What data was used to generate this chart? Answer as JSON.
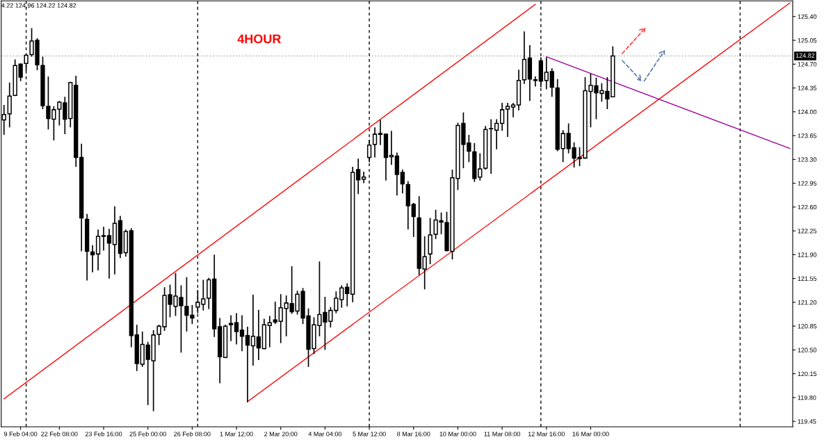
{
  "chart_data": {
    "type": "candlestick",
    "annotations": [
      "4.22 124.96 124.22 124.82",
      "4HOUR"
    ],
    "categories": [
      null,
      null,
      null,
      "9 Feb 04:00",
      null,
      null,
      null,
      null,
      null,
      null,
      "22 Feb 08:00",
      null,
      null,
      null,
      null,
      null,
      null,
      null,
      "23 Feb 16:00",
      null,
      null,
      null,
      null,
      null,
      null,
      null,
      "25 Feb 00:00",
      null,
      null,
      null,
      null,
      null,
      null,
      null,
      "26 Feb 08:00",
      null,
      null,
      null,
      null,
      null,
      null,
      null,
      "1 Mar 12:00",
      null,
      null,
      null,
      null,
      null,
      null,
      null,
      "2 Mar 20:00",
      null,
      null,
      null,
      null,
      null,
      null,
      null,
      "4 Mar 04:00",
      null,
      null,
      null,
      null,
      null,
      null,
      null,
      "5 Mar 12:00",
      null,
      null,
      null,
      null,
      null,
      null,
      null,
      "8 Mar 16:00",
      null,
      null,
      null,
      null,
      null,
      null,
      null,
      "10 Mar 00:00",
      null,
      null,
      null,
      null,
      null,
      null,
      null,
      "11 Mar 08:00",
      null,
      null,
      null,
      null,
      null,
      null,
      null,
      "12 Mar 16:00",
      null,
      null,
      null,
      null,
      null,
      null,
      null,
      "16 Mar 00:00",
      null,
      null,
      null,
      null,
      null,
      null,
      null,
      null,
      null,
      null,
      null,
      null,
      null,
      null,
      null,
      null,
      null,
      null,
      null,
      null,
      null,
      null,
      null,
      null,
      null,
      null,
      null,
      null,
      null,
      null,
      null,
      null,
      null,
      null,
      null,
      null
    ],
    "ohlc": [
      [
        123.88,
        124.1,
        123.66,
        123.96
      ],
      [
        123.97,
        124.43,
        123.77,
        124.23
      ],
      [
        124.24,
        124.77,
        124.23,
        124.68
      ],
      [
        124.7,
        124.71,
        124.45,
        124.51
      ],
      [
        124.71,
        124.85,
        124.6,
        124.83
      ],
      [
        124.84,
        125.23,
        124.81,
        125.04
      ],
      [
        125.05,
        125.08,
        124.61,
        124.69
      ],
      [
        124.68,
        124.81,
        124.04,
        124.09
      ],
      [
        124.08,
        124.52,
        123.74,
        123.9
      ],
      [
        123.89,
        124.08,
        123.58,
        124.03
      ],
      [
        124.04,
        124.16,
        123.8,
        124.14
      ],
      [
        124.13,
        124.22,
        123.67,
        123.89
      ],
      [
        123.9,
        124.44,
        123.77,
        124.43
      ],
      [
        124.39,
        124.53,
        123.19,
        123.33
      ],
      [
        123.33,
        123.53,
        121.95,
        122.44
      ],
      [
        122.42,
        122.5,
        121.52,
        121.95
      ],
      [
        121.94,
        122.04,
        121.64,
        121.9
      ],
      [
        121.91,
        122.27,
        121.67,
        122.17
      ],
      [
        122.18,
        122.31,
        121.96,
        122.17
      ],
      [
        122.18,
        122.28,
        121.55,
        122.07
      ],
      [
        122.05,
        122.61,
        121.61,
        122.36
      ],
      [
        122.4,
        122.47,
        121.85,
        121.92
      ],
      [
        121.93,
        122.27,
        121.87,
        122.24
      ],
      [
        122.25,
        122.29,
        120.54,
        120.71
      ],
      [
        120.72,
        120.87,
        120.19,
        120.3
      ],
      [
        120.29,
        120.77,
        120.25,
        120.58
      ],
      [
        120.57,
        120.62,
        119.69,
        120.36
      ],
      [
        120.34,
        120.79,
        119.6,
        120.72
      ],
      [
        120.73,
        120.87,
        120.57,
        120.85
      ],
      [
        120.84,
        121.42,
        120.78,
        121.3
      ],
      [
        121.31,
        121.46,
        120.98,
        121.17
      ],
      [
        121.14,
        121.63,
        121.0,
        121.29
      ],
      [
        121.27,
        121.45,
        120.46,
        121.15
      ],
      [
        121.14,
        121.57,
        120.77,
        121.01
      ],
      [
        121.01,
        121.16,
        120.88,
        120.97
      ],
      [
        121.13,
        121.38,
        121.04,
        121.2
      ],
      [
        121.17,
        121.53,
        121.08,
        121.25
      ],
      [
        121.26,
        121.56,
        121.1,
        121.53
      ],
      [
        121.54,
        121.9,
        120.69,
        120.81
      ],
      [
        120.84,
        120.97,
        120.01,
        120.4
      ],
      [
        120.39,
        120.87,
        120.38,
        120.85
      ],
      [
        120.89,
        121.01,
        120.63,
        120.87
      ],
      [
        120.9,
        121.04,
        120.58,
        120.77
      ],
      [
        120.79,
        121.01,
        120.48,
        120.7
      ],
      [
        120.71,
        120.84,
        119.73,
        120.57
      ],
      [
        120.56,
        121.31,
        120.27,
        120.7
      ],
      [
        120.69,
        121.09,
        120.35,
        120.53
      ],
      [
        120.52,
        120.96,
        120.51,
        120.87
      ],
      [
        120.86,
        121.0,
        120.54,
        120.9
      ],
      [
        120.94,
        121.21,
        120.88,
        120.91
      ],
      [
        120.92,
        121.32,
        120.6,
        121.12
      ],
      [
        121.11,
        121.3,
        120.7,
        121.19
      ],
      [
        121.18,
        121.73,
        121.03,
        121.06
      ],
      [
        121.07,
        121.37,
        121.02,
        121.32
      ],
      [
        121.36,
        121.41,
        120.88,
        120.97
      ],
      [
        121.0,
        121.11,
        120.25,
        120.51
      ],
      [
        120.52,
        120.98,
        120.44,
        120.87
      ],
      [
        120.86,
        121.8,
        120.7,
        121.02
      ],
      [
        121.05,
        121.28,
        120.5,
        120.91
      ],
      [
        120.92,
        121.13,
        120.83,
        121.08
      ],
      [
        121.08,
        121.36,
        121.04,
        121.26
      ],
      [
        121.24,
        121.45,
        121.12,
        121.41
      ],
      [
        121.42,
        121.48,
        121.14,
        121.33
      ],
      [
        121.32,
        123.19,
        121.2,
        123.11
      ],
      [
        123.15,
        123.31,
        122.79,
        123.0
      ],
      [
        123.01,
        123.12,
        122.95,
        123.04
      ],
      [
        123.33,
        123.59,
        123.26,
        123.51
      ],
      [
        123.52,
        123.77,
        123.33,
        123.67
      ],
      [
        123.68,
        123.88,
        123.51,
        123.67
      ],
      [
        123.67,
        123.68,
        122.99,
        123.33
      ],
      [
        123.34,
        123.72,
        123.22,
        123.36
      ],
      [
        123.35,
        123.4,
        122.77,
        123.08
      ],
      [
        123.11,
        123.15,
        122.8,
        122.94
      ],
      [
        122.93,
        122.98,
        122.27,
        122.62
      ],
      [
        122.64,
        122.66,
        122.16,
        122.46
      ],
      [
        122.44,
        122.76,
        121.6,
        121.7
      ],
      [
        121.69,
        122.17,
        121.39,
        121.87
      ],
      [
        121.91,
        122.44,
        121.76,
        122.19
      ],
      [
        122.2,
        122.56,
        122.13,
        122.41
      ],
      [
        122.4,
        122.52,
        122.2,
        122.38
      ],
      [
        122.37,
        122.53,
        121.95,
        121.96
      ],
      [
        121.95,
        123.15,
        121.83,
        123.03
      ],
      [
        123.02,
        123.84,
        122.85,
        123.8
      ],
      [
        123.83,
        123.99,
        123.17,
        123.52
      ],
      [
        123.54,
        123.66,
        123.26,
        123.42
      ],
      [
        123.41,
        123.54,
        122.97,
        123.02
      ],
      [
        123.04,
        123.39,
        122.99,
        123.16
      ],
      [
        123.17,
        123.79,
        123.15,
        123.74
      ],
      [
        123.75,
        123.89,
        123.09,
        123.75
      ],
      [
        123.73,
        123.89,
        123.45,
        123.83
      ],
      [
        123.83,
        124.13,
        123.72,
        124.03
      ],
      [
        124.04,
        124.13,
        123.63,
        124.08
      ],
      [
        124.07,
        124.13,
        123.92,
        124.1
      ],
      [
        124.1,
        124.62,
        124.02,
        124.46
      ],
      [
        124.47,
        125.18,
        124.41,
        124.77
      ],
      [
        124.79,
        124.98,
        124.16,
        124.48
      ],
      [
        124.47,
        124.52,
        124.37,
        124.46
      ],
      [
        124.75,
        124.8,
        124.36,
        124.45
      ],
      [
        124.46,
        124.8,
        124.33,
        124.58
      ],
      [
        124.59,
        124.64,
        124.22,
        124.36
      ],
      [
        124.35,
        124.48,
        123.42,
        123.45
      ],
      [
        123.46,
        123.73,
        123.26,
        123.68
      ],
      [
        123.68,
        123.83,
        123.39,
        123.46
      ],
      [
        123.47,
        123.55,
        123.18,
        123.32
      ],
      [
        123.33,
        123.48,
        123.2,
        123.31
      ],
      [
        123.32,
        124.51,
        123.31,
        124.31
      ],
      [
        124.3,
        124.56,
        123.77,
        124.39
      ],
      [
        124.38,
        124.5,
        123.89,
        124.28
      ],
      [
        124.27,
        124.42,
        124.15,
        124.31
      ],
      [
        124.3,
        124.51,
        124.04,
        124.19
      ],
      [
        124.22,
        124.96,
        124.22,
        124.82
      ],
      null,
      null,
      null,
      null,
      null,
      null,
      null,
      null,
      null,
      null,
      null,
      null,
      null,
      null,
      null,
      null,
      null,
      null,
      null,
      null,
      null,
      null,
      null,
      null,
      null,
      null,
      null,
      null,
      null,
      null,
      null,
      null
    ],
    "color": "#000000",
    "series": [
      {
        "type": "line",
        "color": "#ff0000",
        "values": [
          119.78,
          null,
          null,
          null,
          null,
          null,
          null,
          null,
          null,
          null,
          null,
          null,
          null,
          null,
          null,
          null,
          null,
          null,
          null,
          null,
          null,
          null,
          null,
          null,
          null,
          null,
          null,
          null,
          null,
          null,
          null,
          null,
          null,
          null,
          null,
          null,
          null,
          null,
          null,
          null,
          null,
          null,
          null,
          null,
          null,
          null,
          null,
          null,
          null,
          null,
          null,
          null,
          null,
          null,
          null,
          null,
          null,
          null,
          null,
          null,
          null,
          null,
          null,
          null,
          null,
          null,
          null,
          null,
          null,
          null,
          null,
          null,
          null,
          null,
          null,
          null,
          null,
          null,
          null,
          null,
          null,
          null,
          null,
          null,
          null,
          null,
          null,
          null,
          null,
          null,
          null,
          null,
          null,
          null,
          null,
          null,
          125.58,
          null,
          null,
          null,
          null,
          null,
          null,
          null,
          null,
          null,
          null,
          null,
          null,
          null,
          null,
          null,
          null,
          null,
          null,
          null,
          null,
          null,
          null,
          null,
          null,
          null,
          null,
          null,
          null,
          null,
          null,
          null,
          null,
          null,
          null,
          null,
          null,
          null,
          null,
          null,
          null,
          null,
          null,
          null,
          null,
          null,
          null
        ]
      },
      {
        "type": "line",
        "color": "#ff0000",
        "values": [
          null,
          null,
          null,
          null,
          null,
          null,
          null,
          null,
          null,
          null,
          null,
          null,
          null,
          null,
          null,
          null,
          null,
          null,
          null,
          null,
          null,
          null,
          null,
          null,
          null,
          null,
          null,
          null,
          null,
          null,
          null,
          null,
          null,
          null,
          null,
          null,
          null,
          null,
          null,
          null,
          null,
          null,
          null,
          null,
          119.74,
          null,
          null,
          null,
          null,
          null,
          null,
          null,
          null,
          null,
          null,
          null,
          null,
          null,
          null,
          null,
          null,
          null,
          null,
          null,
          null,
          null,
          null,
          null,
          null,
          null,
          null,
          null,
          null,
          null,
          null,
          null,
          null,
          null,
          null,
          null,
          null,
          null,
          null,
          null,
          null,
          null,
          null,
          null,
          null,
          null,
          null,
          null,
          null,
          null,
          null,
          null,
          null,
          null,
          null,
          null,
          null,
          null,
          null,
          null,
          null,
          null,
          null,
          null,
          null,
          null,
          null,
          null,
          null,
          null,
          null,
          null,
          null,
          null,
          null,
          null,
          null,
          null,
          null,
          null,
          null,
          null,
          null,
          null,
          null,
          null,
          null,
          null,
          null,
          null,
          null,
          null,
          null,
          null,
          null,
          null,
          null,
          null,
          125.6
        ]
      },
      {
        "type": "line",
        "color": "#990099",
        "values": [
          null,
          null,
          null,
          null,
          null,
          null,
          null,
          null,
          null,
          null,
          null,
          null,
          null,
          null,
          null,
          null,
          null,
          null,
          null,
          null,
          null,
          null,
          null,
          null,
          null,
          null,
          null,
          null,
          null,
          null,
          null,
          null,
          null,
          null,
          null,
          null,
          null,
          null,
          null,
          null,
          null,
          null,
          null,
          null,
          null,
          null,
          null,
          null,
          null,
          null,
          null,
          null,
          null,
          null,
          null,
          null,
          null,
          null,
          null,
          null,
          null,
          null,
          null,
          null,
          null,
          null,
          null,
          null,
          null,
          null,
          null,
          null,
          null,
          null,
          null,
          null,
          null,
          null,
          null,
          null,
          null,
          null,
          null,
          null,
          null,
          null,
          null,
          null,
          null,
          null,
          null,
          null,
          null,
          null,
          null,
          null,
          null,
          null,
          124.81,
          null,
          null,
          null,
          null,
          null,
          null,
          null,
          null,
          null,
          null,
          null,
          null,
          null,
          null,
          null,
          null,
          null,
          null,
          null,
          null,
          null,
          null,
          null,
          null,
          null,
          null,
          null,
          null,
          null,
          null,
          null,
          null,
          null,
          null,
          null,
          null,
          null,
          null,
          null,
          null,
          null,
          null,
          null,
          123.46
        ]
      }
    ],
    "ref_lines": [
      {
        "axis": "y",
        "value": 124.82,
        "label": "124.82",
        "color": "#a0a0a0",
        "line_style": "dotted"
      }
    ],
    "ylim": [
      119.37,
      125.63
    ],
    "yticks": [
      119.45,
      {
        "value": 119.8,
        "label": "119.80"
      },
      120.15,
      {
        "value": 120.5,
        "label": "120.50"
      },
      120.85,
      {
        "value": 121.2,
        "label": "121.20"
      },
      121.55,
      {
        "value": 121.9,
        "label": "121.90"
      },
      122.25,
      {
        "value": 122.6,
        "label": "122.60"
      },
      122.95,
      {
        "value": 123.3,
        "label": "123.30"
      },
      123.65,
      {
        "value": 124.0,
        "label": "124.00"
      },
      124.35,
      {
        "value": 124.7,
        "label": "124.70"
      },
      125.05,
      {
        "value": 125.4,
        "label": "125.40"
      }
    ],
    "grid": false,
    "legend": false
  }
}
